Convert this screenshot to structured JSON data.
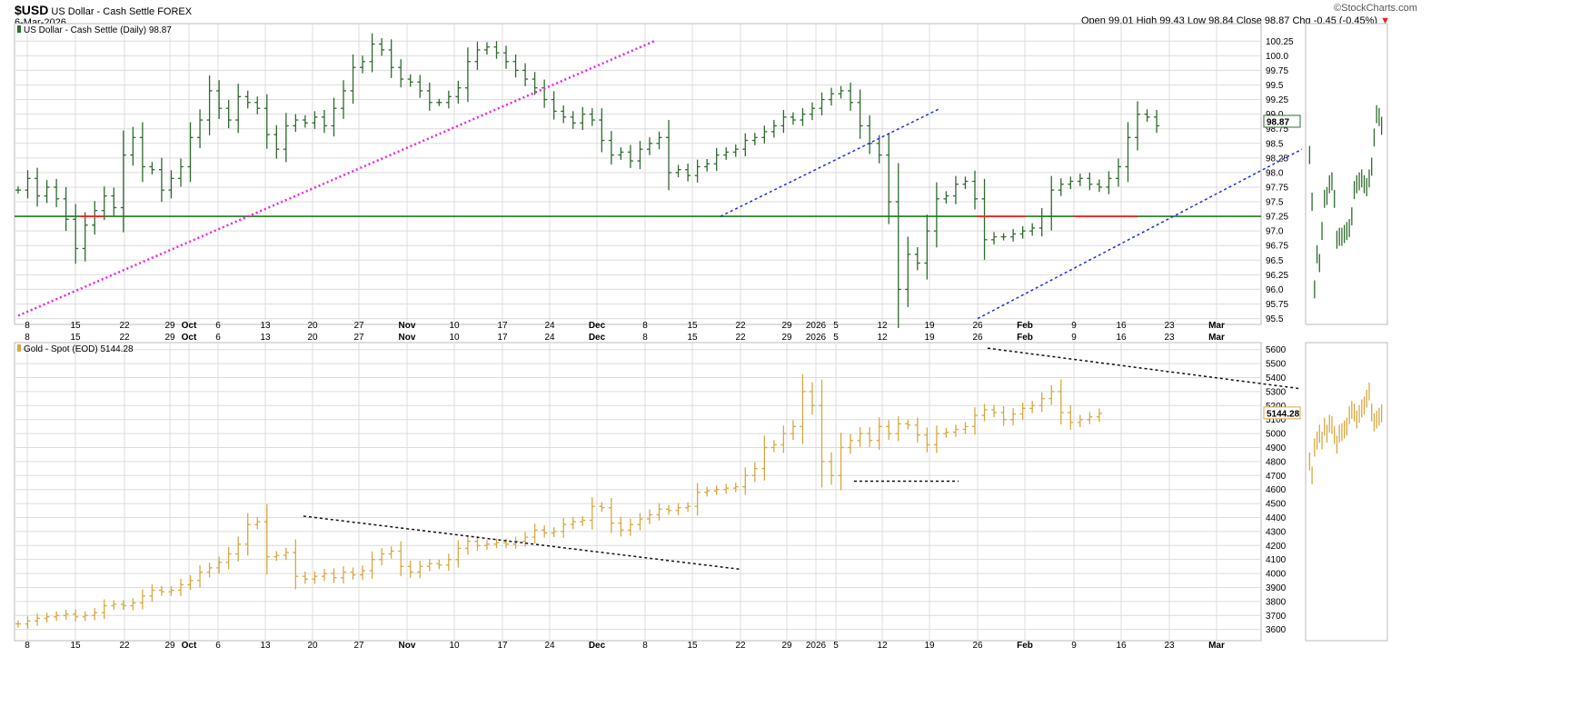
{
  "header": {
    "symbol": "$USD",
    "name": "US Dollar - Cash Settle",
    "exchange": "FOREX",
    "date": "6-Mar-2026",
    "watermark": "©StockCharts.com",
    "ohlc": {
      "open_label": "Open",
      "open": "99.01",
      "high_label": "High",
      "high": "99.43",
      "low_label": "Low",
      "low": "98.84",
      "close_label": "Close",
      "close": "98.87",
      "chg_label": "Chg",
      "chg": "-0.45 (-0.45%)",
      "down_marker": "▼"
    }
  },
  "colors": {
    "usd_bar": "#2e6b2e",
    "gold_bar": "#d8a840",
    "grid": "#dcdcdc",
    "support": "#1f7a1f",
    "support_red": "#ff2020",
    "magenta_trend": "#ee22dd",
    "blue_trend": "#1a2ee0",
    "black_trend": "#111111"
  },
  "chart_data": [
    {
      "type": "ohlc",
      "panel": "usd_daily",
      "legend": "US Dollar - Cash Settle (Daily) 98.87",
      "y_axis_ticks": [
        "100.25",
        "100.0",
        "99.75",
        "99.5",
        "99.25",
        "99.0",
        "98.75",
        "98.5",
        "98.25",
        "98.0",
        "97.75",
        "97.5",
        "97.25",
        "97.0",
        "96.75",
        "96.5",
        "96.25",
        "96.0",
        "95.75",
        "95.5"
      ],
      "ylim": [
        95.4,
        100.55
      ],
      "x_axis_ticks": [
        "8",
        "15",
        "22",
        "29",
        "Oct",
        "6",
        "13",
        "20",
        "27",
        "Nov",
        "10",
        "17",
        "24",
        "Dec",
        "8",
        "15",
        "22",
        "29",
        "2026",
        "5",
        "12",
        "19",
        "26",
        "Feb",
        "9",
        "16",
        "23",
        "Mar"
      ],
      "last_value_label": "98.87",
      "support_line": 97.25,
      "close": [
        97.7,
        97.9,
        97.6,
        97.75,
        97.55,
        97.2,
        96.7,
        97.1,
        97.35,
        97.6,
        97.4,
        98.3,
        98.6,
        98.1,
        98.05,
        97.7,
        97.9,
        98.1,
        98.6,
        98.9,
        99.4,
        99.1,
        98.9,
        99.3,
        99.2,
        99.1,
        98.65,
        98.4,
        98.8,
        98.9,
        98.85,
        98.95,
        98.8,
        99.1,
        99.4,
        99.8,
        99.9,
        100.2,
        100.1,
        99.8,
        99.6,
        99.55,
        99.4,
        99.2,
        99.2,
        99.3,
        99.45,
        99.9,
        100.1,
        100.15,
        100.05,
        99.9,
        99.75,
        99.6,
        99.45,
        99.25,
        99.05,
        98.95,
        98.85,
        99.0,
        98.9,
        98.55,
        98.3,
        98.35,
        98.2,
        98.4,
        98.5,
        98.6,
        98.0,
        98.05,
        97.95,
        98.1,
        98.15,
        98.3,
        98.35,
        98.4,
        98.55,
        98.6,
        98.7,
        98.8,
        98.95,
        98.9,
        99.0,
        99.1,
        99.25,
        99.35,
        99.4,
        99.2,
        98.8,
        98.5,
        98.3,
        97.5,
        96.0,
        96.6,
        96.45,
        97.0,
        97.55,
        97.6,
        97.8,
        97.85,
        97.55,
        96.85,
        96.9,
        96.9,
        96.95,
        97.0,
        97.05,
        97.25,
        97.7,
        97.8,
        97.85,
        97.9,
        97.8,
        97.75,
        97.9,
        98.1,
        98.6,
        99.0,
        98.95,
        98.8
      ]
    },
    {
      "type": "ohlc",
      "panel": "gold_spot",
      "legend": "Gold - Spot (EOD) 5144.28",
      "y_axis_ticks": [
        "5600",
        "5500",
        "5400",
        "5300",
        "5200",
        "5100",
        "5000",
        "4900",
        "4800",
        "4700",
        "4600",
        "4500",
        "4400",
        "4300",
        "4200",
        "4100",
        "4000",
        "3900",
        "3800",
        "3700",
        "3600"
      ],
      "ylim": [
        3520,
        5650
      ],
      "x_axis_ticks": [
        "8",
        "15",
        "22",
        "29",
        "Oct",
        "6",
        "13",
        "20",
        "27",
        "Nov",
        "10",
        "17",
        "24",
        "Dec",
        "8",
        "15",
        "22",
        "29",
        "2026",
        "5",
        "12",
        "19",
        "26",
        "Feb",
        "9",
        "16",
        "23",
        "Mar"
      ],
      "last_value_label": "5144.28",
      "close": [
        3640,
        3660,
        3680,
        3690,
        3700,
        3710,
        3690,
        3700,
        3720,
        3770,
        3780,
        3770,
        3790,
        3840,
        3880,
        3870,
        3880,
        3920,
        3950,
        4010,
        4040,
        4080,
        4140,
        4210,
        4350,
        4370,
        4120,
        4130,
        4150,
        3980,
        3960,
        3980,
        4000,
        3970,
        4010,
        3990,
        4020,
        4100,
        4140,
        4160,
        4050,
        4010,
        4050,
        4070,
        4060,
        4100,
        4180,
        4230,
        4200,
        4210,
        4220,
        4210,
        4230,
        4260,
        4310,
        4290,
        4300,
        4350,
        4370,
        4380,
        4480,
        4470,
        4360,
        4310,
        4350,
        4390,
        4420,
        4460,
        4450,
        4470,
        4480,
        4580,
        4590,
        4600,
        4610,
        4620,
        4700,
        4750,
        4900,
        4920,
        5000,
        5050,
        5300,
        5200,
        4800,
        4700,
        4900,
        4950,
        5000,
        4950,
        5050,
        5000,
        5070,
        5060,
        4990,
        4920,
        5000,
        5010,
        5030,
        5050,
        5130,
        5170,
        5150,
        5100,
        5140,
        5180,
        5200,
        5250,
        5300,
        5150,
        5080,
        5100,
        5120,
        5144
      ]
    }
  ]
}
